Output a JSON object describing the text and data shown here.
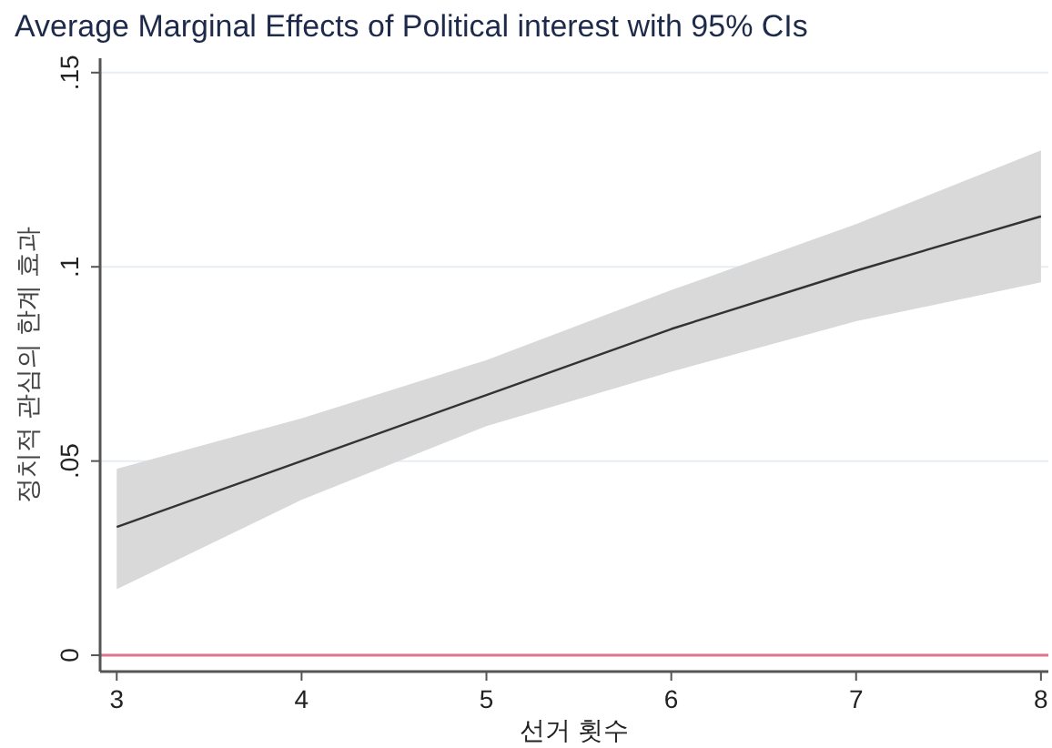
{
  "chart_data": {
    "type": "line",
    "title": "Average Marginal Effects of Political interest with 95% CIs",
    "xlabel": "선거 횟수",
    "ylabel": "정치적 관심의 한계 효과",
    "x": [
      3,
      4,
      5,
      6,
      7,
      8
    ],
    "series": [
      {
        "color": "#333333",
        "values": [
          0.033,
          0.05,
          0.067,
          0.084,
          0.099,
          0.113
        ],
        "lower": [
          0.017,
          0.04,
          0.059,
          0.073,
          0.086,
          0.096
        ],
        "upper": [
          0.048,
          0.061,
          0.076,
          0.094,
          0.111,
          0.13
        ]
      }
    ],
    "xlim": [
      2.91,
      8.04
    ],
    "ylim": [
      -0.0042,
      0.1537
    ],
    "xticks": [
      3,
      4,
      5,
      6,
      7,
      8
    ],
    "yticks": [
      0,
      {
        "value": 0.05,
        "label": ".05"
      },
      {
        "value": 0.1,
        "label": ".1"
      },
      {
        "value": 0.15,
        "label": ".15"
      }
    ],
    "grid": "y",
    "ref_lines": [
      {
        "axis": "y",
        "value": 0,
        "color": "#e0728c"
      }
    ]
  }
}
